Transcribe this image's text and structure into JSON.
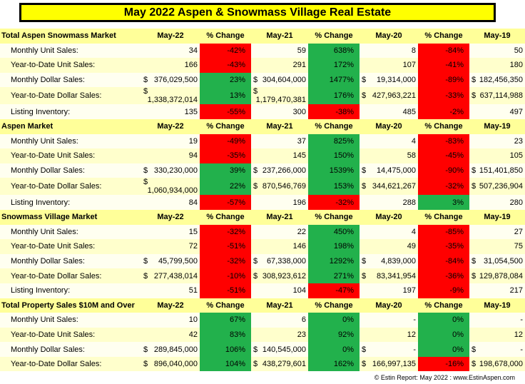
{
  "title": "May 2022 Aspen & Snowmass Village Real Estate",
  "columns": [
    "May-22",
    "% Change",
    "May-21",
    "% Change",
    "May-20",
    "% Change",
    "May-19"
  ],
  "colors": {
    "positive": "#22b14c",
    "negative": "#ff0000",
    "title_bg": "#ffff00",
    "header_bg": "#ffff99"
  },
  "sections": [
    {
      "name": "Total Aspen Snowmass Market",
      "rows": [
        {
          "label": "Monthly Unit Sales:",
          "money": false,
          "v22": "34",
          "p1": "-42%",
          "v21": "59",
          "p2": "638%",
          "v20": "8",
          "p3": "-84%",
          "v19": "50"
        },
        {
          "label": "Year-to-Date Unit Sales:",
          "money": false,
          "v22": "166",
          "p1": "-43%",
          "v21": "291",
          "p2": "172%",
          "v20": "107",
          "p3": "-41%",
          "v19": "180"
        },
        {
          "label": "Monthly Dollar Sales:",
          "money": true,
          "v22": "376,029,500",
          "p1": "23%",
          "v21": "304,604,000",
          "p2": "1477%",
          "v20": "19,314,000",
          "p3": "-89%",
          "v19": "182,456,350"
        },
        {
          "label": "Year-to-Date Dollar Sales:",
          "money": true,
          "v22": "1,338,372,014",
          "p1": "13%",
          "v21": "1,179,470,381",
          "p2": "176%",
          "v20": "427,963,221",
          "p3": "-33%",
          "v19": "637,114,988"
        },
        {
          "label": "Listing Inventory:",
          "money": false,
          "v22": "135",
          "p1": "-55%",
          "v21": "300",
          "p2": "-38%",
          "v20": "485",
          "p3": "-2%",
          "v19": "497"
        }
      ]
    },
    {
      "name": "Aspen Market",
      "rows": [
        {
          "label": "Monthly Unit Sales:",
          "money": false,
          "v22": "19",
          "p1": "-49%",
          "v21": "37",
          "p2": "825%",
          "v20": "4",
          "p3": "-83%",
          "v19": "23"
        },
        {
          "label": "Year-to-Date Unit Sales:",
          "money": false,
          "v22": "94",
          "p1": "-35%",
          "v21": "145",
          "p2": "150%",
          "v20": "58",
          "p3": "-45%",
          "v19": "105"
        },
        {
          "label": "Monthly Dollar Sales:",
          "money": true,
          "v22": "330,230,000",
          "p1": "39%",
          "v21": "237,266,000",
          "p2": "1539%",
          "v20": "14,475,000",
          "p3": "-90%",
          "v19": "151,401,850"
        },
        {
          "label": "Year-to-Date Dollar Sales:",
          "money": true,
          "v22": "1,060,934,000",
          "p1": "22%",
          "v21": "870,546,769",
          "p2": "153%",
          "v20": "344,621,267",
          "p3": "-32%",
          "v19": "507,236,904"
        },
        {
          "label": "Listing Inventory:",
          "money": false,
          "v22": "84",
          "p1": "-57%",
          "v21": "196",
          "p2": "-32%",
          "v20": "288",
          "p3": "3%",
          "v19": "280"
        }
      ]
    },
    {
      "name": "Snowmass Village Market",
      "rows": [
        {
          "label": "Monthly Unit Sales:",
          "money": false,
          "v22": "15",
          "p1": "-32%",
          "v21": "22",
          "p2": "450%",
          "v20": "4",
          "p3": "-85%",
          "v19": "27"
        },
        {
          "label": "Year-to-Date Unit Sales:",
          "money": false,
          "v22": "72",
          "p1": "-51%",
          "v21": "146",
          "p2": "198%",
          "v20": "49",
          "p3": "-35%",
          "v19": "75"
        },
        {
          "label": "Monthly Dollar Sales:",
          "money": true,
          "v22": "45,799,500",
          "p1": "-32%",
          "v21": "67,338,000",
          "p2": "1292%",
          "v20": "4,839,000",
          "p3": "-84%",
          "v19": "31,054,500"
        },
        {
          "label": "Year-to-Date Dollar Sales:",
          "money": true,
          "v22": "277,438,014",
          "p1": "-10%",
          "v21": "308,923,612",
          "p2": "271%",
          "v20": "83,341,954",
          "p3": "-36%",
          "v19": "129,878,084"
        },
        {
          "label": "Listing Inventory:",
          "money": false,
          "v22": "51",
          "p1": "-51%",
          "v21": "104",
          "p2": "-47%",
          "v20": "197",
          "p3": "-9%",
          "v19": "217"
        }
      ]
    },
    {
      "name": "Total Property Sales $10M and Over",
      "rows": [
        {
          "label": "Monthly Unit Sales:",
          "money": false,
          "v22": "10",
          "p1": "67%",
          "v21": "6",
          "p2": "0%",
          "v20": "-",
          "p3": "0%",
          "v19": "-"
        },
        {
          "label": "Year-to-Date Unit Sales:",
          "money": false,
          "v22": "42",
          "p1": "83%",
          "v21": "23",
          "p2": "92%",
          "v20": "12",
          "p3": "0%",
          "v19": "12"
        },
        {
          "label": "Monthly Dollar Sales:",
          "money": true,
          "v22": "289,845,000",
          "p1": "106%",
          "v21": "140,545,000",
          "p2": "0%",
          "v20": "-",
          "p3": "0%",
          "v19": "-"
        },
        {
          "label": "Year-to-Date Dollar Sales:",
          "money": true,
          "v22": "896,040,000",
          "p1": "104%",
          "v21": "438,279,601",
          "p2": "162%",
          "v20": "166,997,135",
          "p3": "-16%",
          "v19": "198,678,000"
        }
      ]
    }
  ],
  "footer": "© Estin Report: May 2022 : www.EstinAspen.com"
}
